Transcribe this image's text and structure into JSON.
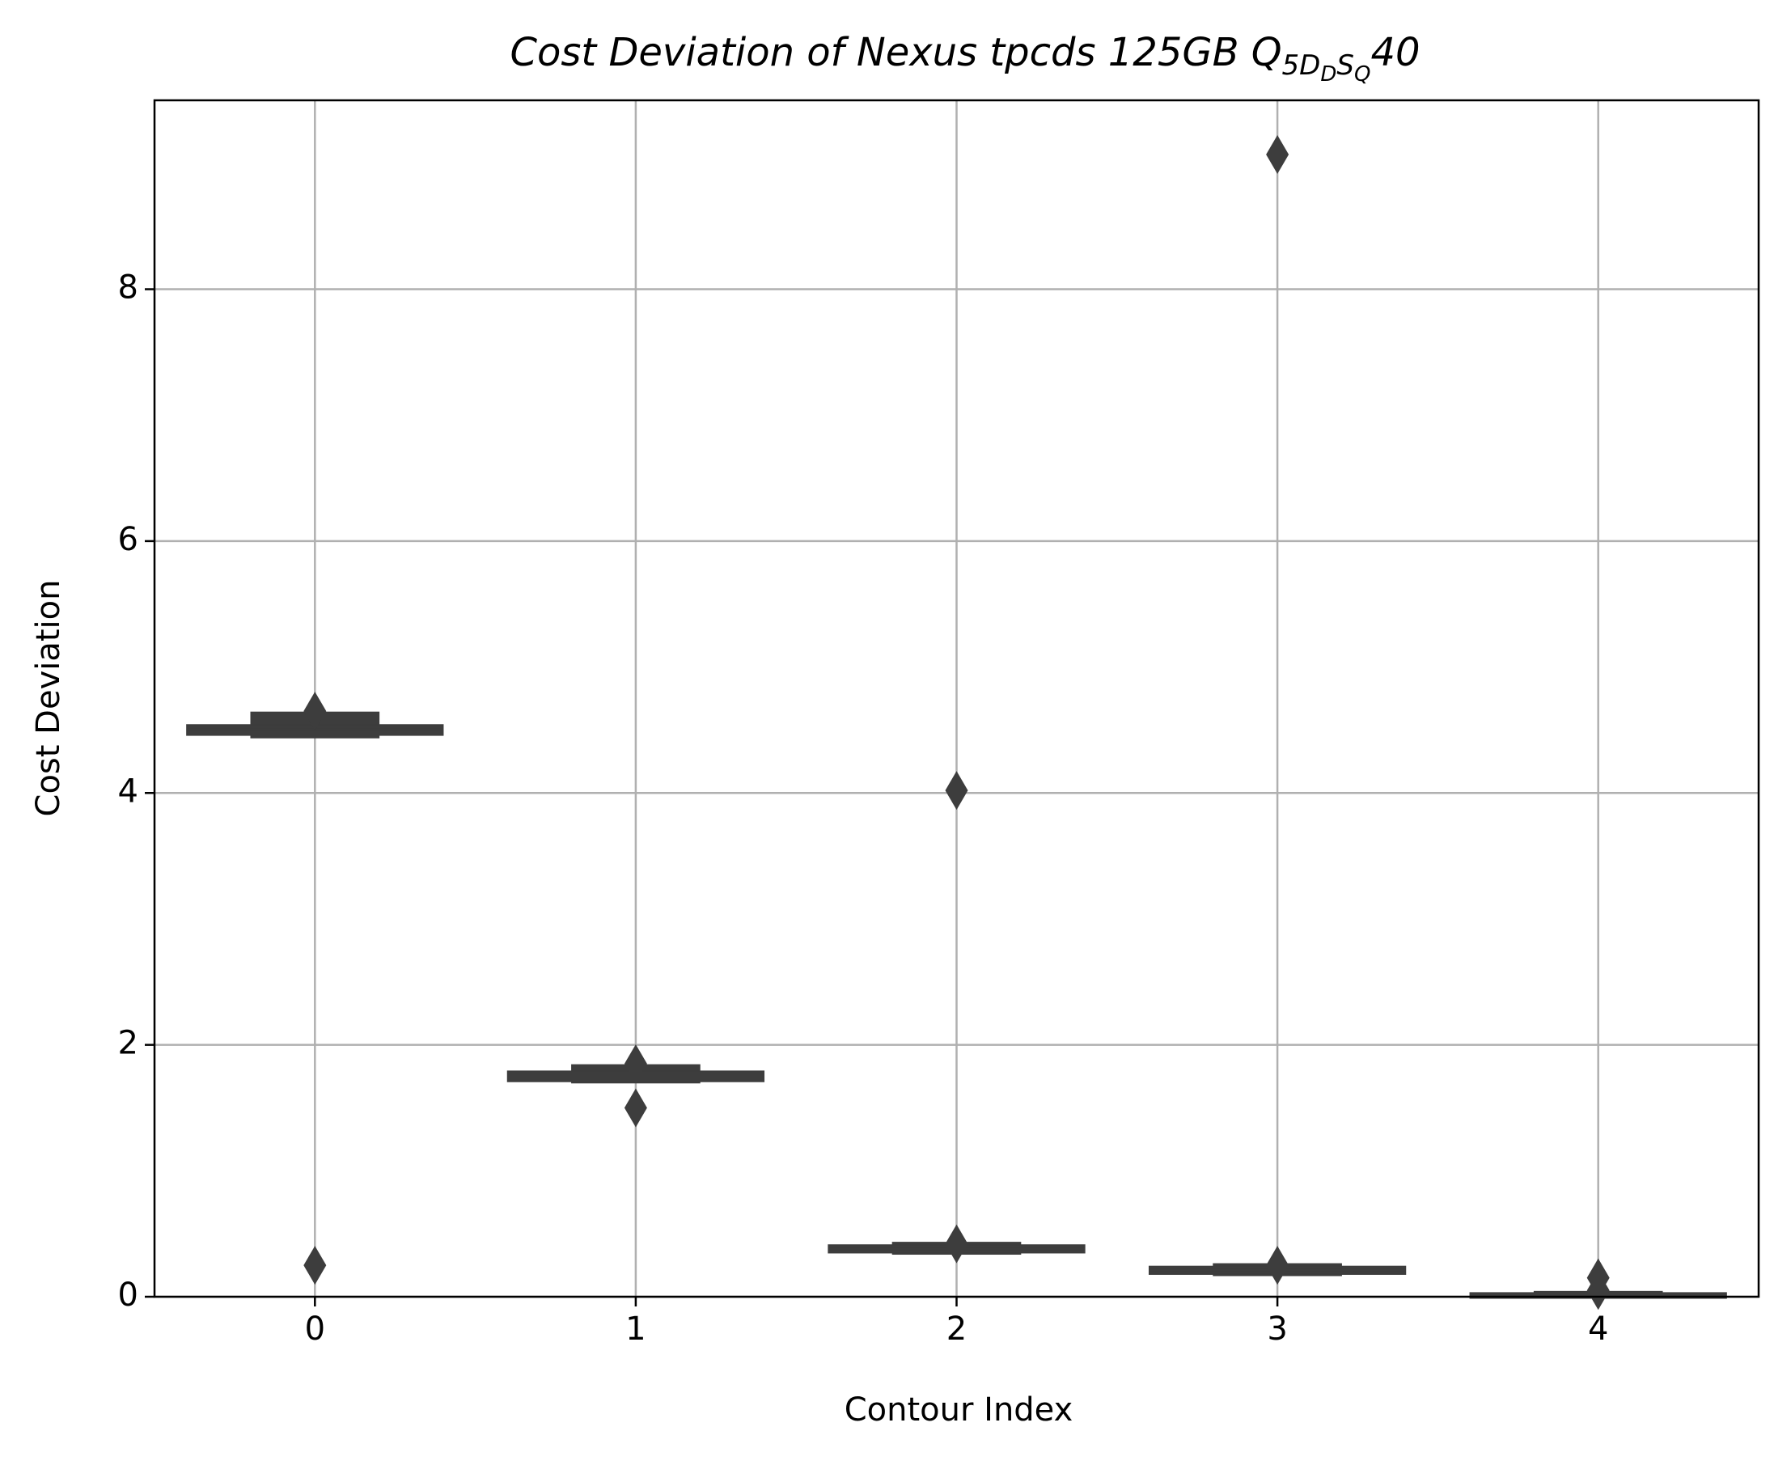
{
  "chart_data": {
    "type": "boxen",
    "title_parts": [
      {
        "text": "Cost Deviation of Nexus tpcds  125GB  Q",
        "level": 0
      },
      {
        "text": "5D",
        "level": 1
      },
      {
        "text": "D",
        "level": 2
      },
      {
        "text": "S",
        "level": 1
      },
      {
        "text": "Q",
        "level": 2
      },
      {
        "text": "40",
        "level": 0
      }
    ],
    "x_label": "Contour Index",
    "y_label": "Cost Deviation",
    "categories": [
      "0",
      "1",
      "2",
      "3",
      "4"
    ],
    "groups": [
      {
        "boxes": [
          [
            4.47,
            4.53
          ],
          [
            4.45,
            4.63
          ]
        ],
        "median": 4.5,
        "outliers": [
          4.65,
          0.25
        ]
      },
      {
        "boxes": [
          [
            1.72,
            1.78
          ],
          [
            1.71,
            1.83
          ]
        ],
        "median": 1.75,
        "outliers": [
          1.85,
          1.5
        ]
      },
      {
        "boxes": [
          [
            0.36,
            0.4
          ],
          [
            0.35,
            0.42
          ]
        ],
        "median": 0.38,
        "outliers": [
          4.02,
          0.42
        ]
      },
      {
        "boxes": [
          [
            0.19,
            0.23
          ],
          [
            0.18,
            0.25
          ]
        ],
        "median": 0.21,
        "outliers": [
          9.07,
          0.25
        ]
      },
      {
        "boxes": [
          [
            0.0,
            0.02
          ],
          [
            0.0,
            0.03
          ]
        ],
        "median": 0.01,
        "outliers": [
          0.15,
          0.05
        ]
      }
    ],
    "color": "#3d3d3d",
    "xlim": [
      -0.5,
      4.5
    ],
    "ylim": [
      0,
      9.5
    ],
    "yticks": [
      0,
      2,
      4,
      6,
      8
    ],
    "grid": true
  }
}
